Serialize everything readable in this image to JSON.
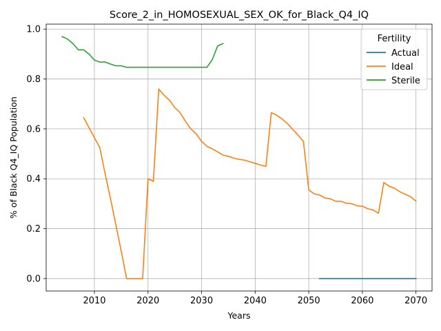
{
  "chart_data": {
    "type": "line",
    "title": "Score_2_in_HOMOSEXUAL_SEX_OK_for_Black_Q4_IQ",
    "xlabel": "Years",
    "ylabel": "% of Black Q4_IQ Population",
    "xlim": [
      2001,
      2073
    ],
    "ylim": [
      -0.05,
      1.02
    ],
    "xticks": [
      2010,
      2020,
      2030,
      2040,
      2050,
      2060,
      2070
    ],
    "yticks": [
      0.0,
      0.2,
      0.4,
      0.6,
      0.8,
      1.0
    ],
    "xtick_labels": [
      "2010",
      "2020",
      "2030",
      "2040",
      "2050",
      "2060",
      "2070"
    ],
    "ytick_labels": [
      "0.0",
      "0.2",
      "0.4",
      "0.6",
      "0.8",
      "1.0"
    ],
    "grid": true,
    "legend": {
      "title": "Fertility",
      "position": "top-right"
    },
    "series": [
      {
        "name": "Actual",
        "color": "#1f77b4",
        "x": [
          2052,
          2053,
          2054,
          2055,
          2056,
          2057,
          2058,
          2059,
          2060,
          2061,
          2062,
          2063,
          2064,
          2065,
          2066,
          2067,
          2068,
          2069,
          2070
        ],
        "y": [
          0,
          0,
          0,
          0,
          0,
          0,
          0,
          0,
          0,
          0,
          0,
          0,
          0,
          0,
          0,
          0,
          0,
          0,
          0
        ]
      },
      {
        "name": "Ideal",
        "color": "#ff7f0e",
        "x": [
          2008,
          2009,
          2010,
          2011,
          2012,
          2013,
          2014,
          2015,
          2016,
          2017,
          2018,
          2019,
          2020,
          2021,
          2022,
          2023,
          2024,
          2025,
          2026,
          2027,
          2028,
          2029,
          2030,
          2031,
          2032,
          2033,
          2034,
          2035,
          2036,
          2037,
          2038,
          2039,
          2040,
          2041,
          2042,
          2043,
          2044,
          2045,
          2046,
          2047,
          2048,
          2049,
          2050,
          2051,
          2052,
          2053,
          2054,
          2055,
          2056,
          2057,
          2058,
          2059,
          2060,
          2061,
          2062,
          2063,
          2064,
          2065,
          2066,
          2067,
          2068,
          2069,
          2070
        ],
        "y": [
          0.645,
          0.605,
          0.565,
          0.525,
          0.42,
          0.32,
          0.215,
          0.11,
          0.0,
          0.0,
          0.0,
          0.0,
          0.4,
          0.39,
          0.76,
          0.735,
          0.715,
          0.685,
          0.665,
          0.63,
          0.6,
          0.58,
          0.55,
          0.53,
          0.52,
          0.508,
          0.495,
          0.49,
          0.483,
          0.478,
          0.475,
          0.468,
          0.462,
          0.455,
          0.45,
          0.665,
          0.655,
          0.64,
          0.622,
          0.598,
          0.575,
          0.55,
          0.355,
          0.34,
          0.335,
          0.323,
          0.32,
          0.31,
          0.31,
          0.302,
          0.3,
          0.292,
          0.29,
          0.28,
          0.275,
          0.262,
          0.385,
          0.37,
          0.362,
          0.348,
          0.338,
          0.328,
          0.31
        ]
      },
      {
        "name": "Sterile",
        "color": "#2ca02c",
        "x": [
          2004,
          2005,
          2006,
          2007,
          2008,
          2009,
          2010,
          2011,
          2012,
          2013,
          2014,
          2015,
          2016,
          2017,
          2018,
          2019,
          2020,
          2021,
          2022,
          2023,
          2024,
          2025,
          2026,
          2027,
          2028,
          2029,
          2030,
          2031,
          2032,
          2033,
          2034
        ],
        "y": [
          0.97,
          0.96,
          0.942,
          0.917,
          0.917,
          0.9,
          0.876,
          0.868,
          0.868,
          0.86,
          0.853,
          0.853,
          0.847,
          0.847,
          0.847,
          0.847,
          0.847,
          0.847,
          0.847,
          0.847,
          0.847,
          0.847,
          0.847,
          0.847,
          0.847,
          0.847,
          0.847,
          0.847,
          0.878,
          0.933,
          0.942
        ]
      }
    ]
  }
}
